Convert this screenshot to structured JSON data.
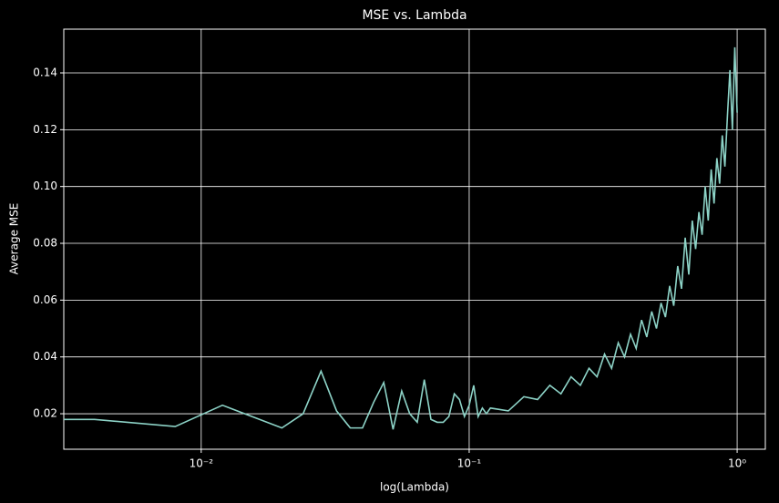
{
  "chart_data": {
    "type": "line",
    "title": "MSE vs. Lambda",
    "x_label": "log(Lambda)",
    "y_label": "Average MSE",
    "x_scale": "log",
    "grid": true,
    "color": "#8dd3c7",
    "x": [
      0.002,
      0.004,
      0.008,
      0.012,
      0.02,
      0.024,
      0.028,
      0.032,
      0.036,
      0.04,
      0.044,
      0.048,
      0.052,
      0.056,
      0.06,
      0.064,
      0.068,
      0.072,
      0.076,
      0.08,
      0.084,
      0.088,
      0.092,
      0.096,
      0.1,
      0.104,
      0.108,
      0.112,
      0.116,
      0.12,
      0.14,
      0.16,
      0.18,
      0.2,
      0.22,
      0.24,
      0.26,
      0.28,
      0.3,
      0.32,
      0.34,
      0.36,
      0.38,
      0.4,
      0.42,
      0.44,
      0.46,
      0.48,
      0.5,
      0.52,
      0.54,
      0.56,
      0.58,
      0.6,
      0.62,
      0.64,
      0.66,
      0.68,
      0.7,
      0.72,
      0.74,
      0.76,
      0.78,
      0.8,
      0.82,
      0.84,
      0.86,
      0.88,
      0.9,
      0.92,
      0.94,
      0.96,
      0.98,
      1.0
    ],
    "values": [
      0.018,
      0.018,
      0.0155,
      0.023,
      0.015,
      0.02,
      0.035,
      0.021,
      0.015,
      0.015,
      0.024,
      0.031,
      0.0145,
      0.028,
      0.02,
      0.017,
      0.032,
      0.018,
      0.017,
      0.017,
      0.019,
      0.027,
      0.025,
      0.019,
      0.023,
      0.03,
      0.019,
      0.022,
      0.02,
      0.022,
      0.021,
      0.026,
      0.025,
      0.03,
      0.027,
      0.033,
      0.03,
      0.036,
      0.033,
      0.041,
      0.036,
      0.045,
      0.04,
      0.048,
      0.043,
      0.053,
      0.047,
      0.056,
      0.05,
      0.059,
      0.054,
      0.065,
      0.058,
      0.072,
      0.064,
      0.082,
      0.069,
      0.088,
      0.078,
      0.091,
      0.083,
      0.1,
      0.088,
      0.106,
      0.094,
      0.11,
      0.101,
      0.118,
      0.107,
      0.125,
      0.141,
      0.12,
      0.149,
      0.126
    ],
    "xlim": [
      0.00307,
      1.274
    ],
    "xticks": [
      {
        "value": 0.01,
        "label": "10⁻²"
      },
      {
        "value": 0.1,
        "label": "10⁻¹"
      },
      {
        "value": 1,
        "label": "10⁰"
      }
    ],
    "ylim": [
      0.0075,
      0.1554
    ],
    "yticks": [
      0.02,
      0.04,
      0.06,
      0.08,
      {
        "value": 0.1,
        "label": "0.10"
      },
      0.12,
      0.14
    ]
  }
}
